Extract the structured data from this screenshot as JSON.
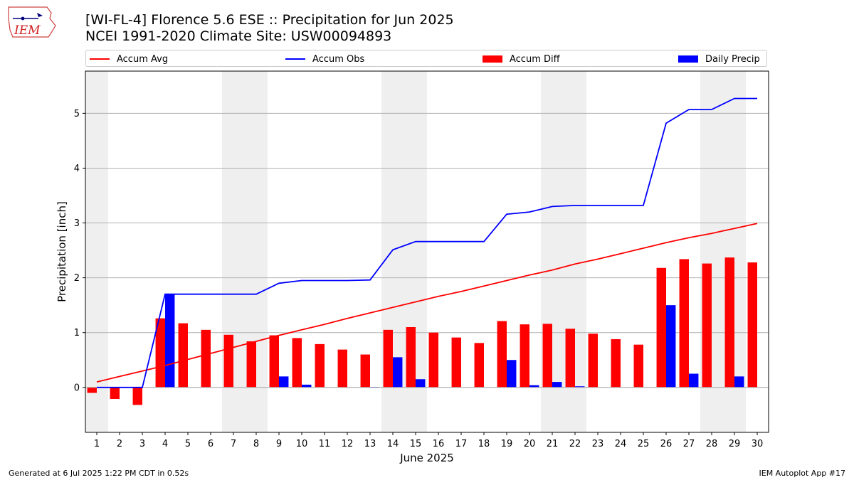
{
  "header": {
    "title_line1": "[WI-FL-4] Florence 5.6 ESE :: Precipitation for Jun 2025",
    "title_line2": "NCEI 1991-2020 Climate Site: USW00094893",
    "logo_text": "IEM"
  },
  "footer": {
    "generated": "Generated at 6 Jul 2025 1:22 PM CDT in 0.52s",
    "app": "IEM Autoplot App #17"
  },
  "colors": {
    "avg": "#ff0000",
    "obs": "#0000ff",
    "diff": "#ff0000",
    "daily": "#0000ff",
    "weekend_shade": "#efefef",
    "grid": "#b0b0b0"
  },
  "chart_data": {
    "type": "bar",
    "xlabel": "June 2025",
    "ylabel": "Precipitation [inch]",
    "xlim": [
      0.5,
      30.5
    ],
    "ylim": [
      -0.82,
      5.77
    ],
    "yticks": [
      0,
      1,
      2,
      3,
      4,
      5
    ],
    "grid": "y",
    "legend_placement": "top",
    "legend": [
      {
        "key": "avg",
        "label": "Accum Avg",
        "kind": "line"
      },
      {
        "key": "obs",
        "label": "Accum Obs",
        "kind": "line"
      },
      {
        "key": "diff",
        "label": "Accum Diff",
        "kind": "bar"
      },
      {
        "key": "daily",
        "label": "Daily Precip",
        "kind": "bar"
      }
    ],
    "shaded_days": [
      [
        0.5,
        1.5
      ],
      [
        6.5,
        8.5
      ],
      [
        13.5,
        15.5
      ],
      [
        20.5,
        22.5
      ],
      [
        27.5,
        29.5
      ]
    ],
    "x": [
      1,
      2,
      3,
      4,
      5,
      6,
      7,
      8,
      9,
      10,
      11,
      12,
      13,
      14,
      15,
      16,
      17,
      18,
      19,
      20,
      21,
      22,
      23,
      24,
      25,
      26,
      27,
      28,
      29,
      30
    ],
    "series": [
      {
        "key": "avg",
        "name": "Accum Avg",
        "type": "line",
        "values": [
          0.1,
          0.2,
          0.3,
          0.4,
          0.51,
          0.62,
          0.73,
          0.84,
          0.95,
          1.05,
          1.15,
          1.26,
          1.36,
          1.46,
          1.56,
          1.66,
          1.75,
          1.85,
          1.95,
          2.05,
          2.14,
          2.25,
          2.34,
          2.44,
          2.54,
          2.64,
          2.73,
          2.81,
          2.9,
          2.99
        ]
      },
      {
        "key": "obs",
        "name": "Accum Obs",
        "type": "line",
        "values": [
          0.0,
          0.0,
          0.0,
          1.7,
          1.7,
          1.7,
          1.7,
          1.7,
          1.9,
          1.95,
          1.95,
          1.95,
          1.96,
          2.51,
          2.66,
          2.66,
          2.66,
          2.66,
          3.16,
          3.2,
          3.3,
          3.32,
          3.32,
          3.32,
          3.32,
          4.82,
          5.07,
          5.07,
          5.27,
          5.27
        ]
      },
      {
        "key": "diff",
        "name": "Accum Diff",
        "type": "bar",
        "values": [
          -0.1,
          -0.21,
          -0.32,
          1.26,
          1.17,
          1.05,
          0.96,
          0.84,
          0.95,
          0.9,
          0.79,
          0.69,
          0.6,
          1.05,
          1.1,
          1.0,
          0.91,
          0.81,
          1.21,
          1.15,
          1.16,
          1.07,
          0.98,
          0.88,
          0.78,
          2.18,
          2.34,
          2.26,
          2.37,
          2.28
        ]
      },
      {
        "key": "daily",
        "name": "Daily Precip",
        "type": "bar",
        "values": [
          0.0,
          0.0,
          0.0,
          1.7,
          0.0,
          0.0,
          0.0,
          0.0,
          0.2,
          0.05,
          0.0,
          0.0,
          0.01,
          0.55,
          0.15,
          0.0,
          0.0,
          0.0,
          0.5,
          0.04,
          0.1,
          0.02,
          0.0,
          0.0,
          0.0,
          1.5,
          0.25,
          0.0,
          0.2,
          0.0
        ]
      }
    ]
  }
}
